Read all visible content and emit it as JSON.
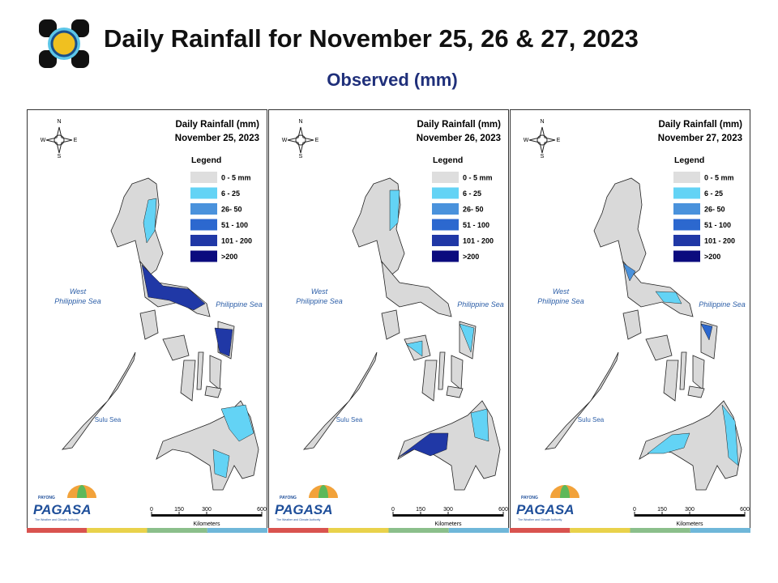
{
  "header": {
    "title": "Daily Rainfall for November 25, 26 & 27, 2023",
    "subtitle": "Observed (mm)"
  },
  "common": {
    "legend_heading": "Legend",
    "legend": [
      {
        "label": "0 - 5 mm",
        "color": "#dedede"
      },
      {
        "label": "6 - 25",
        "color": "#63d3f5"
      },
      {
        "label": "26- 50",
        "color": "#4a92dc"
      },
      {
        "label": "51 - 100",
        "color": "#2c68cf"
      },
      {
        "label": "101 - 200",
        "color": "#2038a6"
      },
      {
        "label": ">200",
        "color": "#0b0b7e"
      }
    ],
    "compass": {
      "n": "N",
      "s": "S",
      "w": "W",
      "e": "E"
    },
    "seas": {
      "west": [
        "West",
        "Philippine Sea"
      ],
      "east": "Philippine Sea",
      "south": "Sulu Sea"
    },
    "scale": {
      "ticks": [
        0,
        150,
        300,
        600
      ],
      "unit": "Kilometers"
    },
    "logo": {
      "payong": "PAYONG",
      "agency": "PAGASA",
      "tagline": "The Weather and Climate Authority"
    }
  },
  "maps": [
    {
      "heading": "Daily Rainfall (mm)",
      "date": "November 25, 2023"
    },
    {
      "heading": "Daily Rainfall (mm)",
      "date": "November 26, 2023"
    },
    {
      "heading": "Daily Rainfall (mm)",
      "date": "November 27, 2023"
    }
  ]
}
